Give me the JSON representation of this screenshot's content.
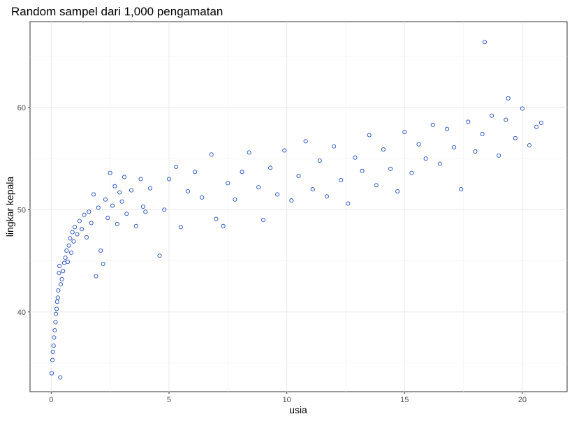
{
  "chart_data": {
    "type": "scatter",
    "title": "Random sampel dari 1,000 pengamatan",
    "xlabel": "usia",
    "ylabel": "lingkar kepala",
    "xlim": [
      -0.9,
      21.9
    ],
    "ylim": [
      32.2,
      68.4
    ],
    "x_ticks": [
      0,
      5,
      10,
      15,
      20
    ],
    "x_tick_labels": [
      "0",
      "5",
      "10",
      "15",
      "20"
    ],
    "y_ticks": [
      40,
      50,
      60
    ],
    "y_tick_labels": [
      "40",
      "50",
      "60"
    ],
    "grid": true,
    "point_color": "#1f4fbf",
    "sample_size": 1000,
    "points": [
      [
        0.02,
        34.0
      ],
      [
        0.05,
        35.3
      ],
      [
        0.07,
        36.1
      ],
      [
        0.1,
        36.7
      ],
      [
        0.12,
        37.5
      ],
      [
        0.15,
        38.2
      ],
      [
        0.18,
        39.0
      ],
      [
        0.2,
        39.8
      ],
      [
        0.23,
        40.3
      ],
      [
        0.25,
        41.0
      ],
      [
        0.28,
        41.4
      ],
      [
        0.3,
        42.1
      ],
      [
        0.33,
        43.8
      ],
      [
        0.35,
        44.5
      ],
      [
        0.38,
        33.6
      ],
      [
        0.4,
        42.7
      ],
      [
        0.45,
        43.2
      ],
      [
        0.5,
        44.0
      ],
      [
        0.55,
        44.8
      ],
      [
        0.6,
        45.3
      ],
      [
        0.65,
        46.0
      ],
      [
        0.7,
        44.9
      ],
      [
        0.75,
        46.5
      ],
      [
        0.8,
        47.2
      ],
      [
        0.85,
        45.8
      ],
      [
        0.9,
        47.8
      ],
      [
        0.95,
        46.9
      ],
      [
        1.0,
        48.3
      ],
      [
        1.1,
        47.6
      ],
      [
        1.2,
        48.9
      ],
      [
        1.3,
        48.1
      ],
      [
        1.4,
        49.5
      ],
      [
        1.5,
        47.3
      ],
      [
        1.6,
        49.8
      ],
      [
        1.7,
        48.7
      ],
      [
        1.8,
        51.5
      ],
      [
        1.9,
        43.5
      ],
      [
        2.0,
        50.2
      ],
      [
        2.1,
        46.0
      ],
      [
        2.2,
        44.7
      ],
      [
        2.3,
        51.0
      ],
      [
        2.4,
        49.2
      ],
      [
        2.5,
        53.6
      ],
      [
        2.6,
        50.4
      ],
      [
        2.7,
        52.3
      ],
      [
        2.8,
        48.6
      ],
      [
        2.9,
        51.7
      ],
      [
        3.0,
        50.8
      ],
      [
        3.1,
        53.2
      ],
      [
        3.2,
        49.6
      ],
      [
        3.4,
        51.9
      ],
      [
        3.6,
        48.4
      ],
      [
        3.8,
        53.0
      ],
      [
        3.9,
        50.3
      ],
      [
        4.0,
        49.8
      ],
      [
        4.2,
        52.1
      ],
      [
        4.6,
        45.5
      ],
      [
        4.8,
        50.0
      ],
      [
        5.0,
        53.0
      ],
      [
        5.3,
        54.2
      ],
      [
        5.5,
        48.3
      ],
      [
        5.8,
        51.8
      ],
      [
        6.1,
        53.7
      ],
      [
        6.4,
        51.2
      ],
      [
        6.8,
        55.4
      ],
      [
        7.0,
        49.1
      ],
      [
        7.3,
        48.4
      ],
      [
        7.5,
        52.6
      ],
      [
        7.8,
        51.0
      ],
      [
        8.1,
        53.7
      ],
      [
        8.4,
        55.6
      ],
      [
        8.8,
        52.2
      ],
      [
        9.0,
        49.0
      ],
      [
        9.3,
        54.1
      ],
      [
        9.6,
        51.5
      ],
      [
        9.9,
        55.8
      ],
      [
        10.2,
        50.9
      ],
      [
        10.5,
        53.3
      ],
      [
        10.8,
        56.7
      ],
      [
        11.1,
        52.0
      ],
      [
        11.4,
        54.8
      ],
      [
        11.7,
        51.3
      ],
      [
        12.0,
        56.2
      ],
      [
        12.3,
        52.9
      ],
      [
        12.6,
        50.6
      ],
      [
        12.9,
        55.1
      ],
      [
        13.2,
        53.8
      ],
      [
        13.5,
        57.3
      ],
      [
        13.8,
        52.4
      ],
      [
        14.1,
        55.9
      ],
      [
        14.4,
        54.0
      ],
      [
        14.7,
        51.8
      ],
      [
        15.0,
        57.6
      ],
      [
        15.3,
        53.6
      ],
      [
        15.6,
        56.4
      ],
      [
        15.9,
        55.0
      ],
      [
        16.2,
        58.3
      ],
      [
        16.5,
        54.5
      ],
      [
        16.8,
        57.9
      ],
      [
        17.1,
        56.1
      ],
      [
        17.4,
        52.0
      ],
      [
        17.7,
        58.6
      ],
      [
        18.0,
        55.7
      ],
      [
        18.3,
        57.4
      ],
      [
        18.4,
        66.4
      ],
      [
        18.7,
        59.2
      ],
      [
        19.0,
        55.3
      ],
      [
        19.3,
        58.8
      ],
      [
        19.4,
        60.9
      ],
      [
        19.7,
        57.0
      ],
      [
        20.0,
        59.9
      ],
      [
        20.3,
        56.3
      ],
      [
        20.6,
        58.1
      ],
      [
        20.8,
        58.5
      ]
    ]
  }
}
